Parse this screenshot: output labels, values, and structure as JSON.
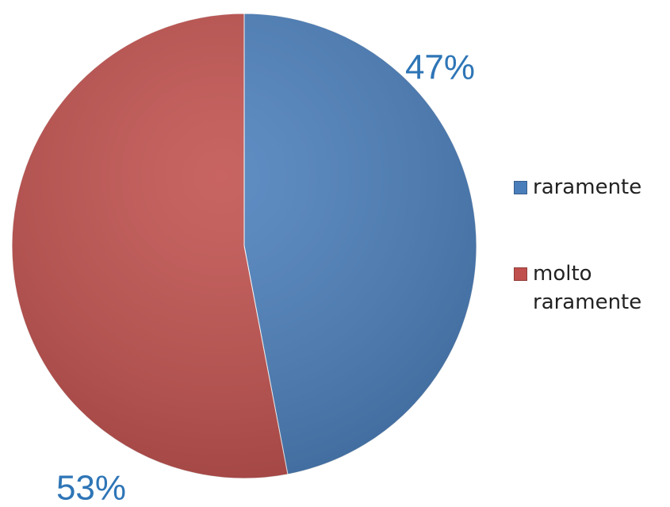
{
  "chart_data": {
    "type": "pie",
    "categories": [
      "raramente",
      "molto raramente"
    ],
    "values": [
      47,
      53
    ],
    "value_labels": [
      "47%",
      "53%"
    ],
    "colors": [
      "#4a7ebb",
      "#c0504d"
    ],
    "legend": "right"
  }
}
